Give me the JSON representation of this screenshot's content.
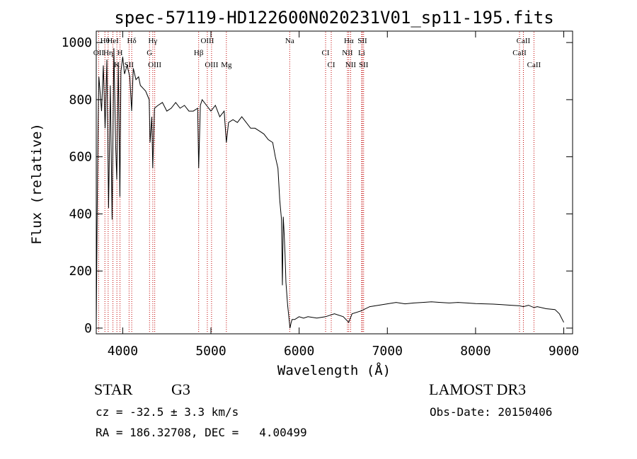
{
  "colors": {
    "spectrum": "#000000",
    "line_marker": "#c00000",
    "axis": "#000000",
    "background": "#ffffff"
  },
  "chart_data": {
    "type": "line",
    "title": "spec-57119-HD122600N020231V01_sp11-195.fits",
    "xlabel": "Wavelength (Å)",
    "ylabel": "Flux (relative)",
    "xlim": [
      3700,
      9100
    ],
    "ylim": [
      -20,
      1040
    ],
    "x_ticks": [
      4000,
      5000,
      6000,
      7000,
      8000,
      9000
    ],
    "y_ticks": [
      0,
      200,
      400,
      600,
      800,
      1000
    ],
    "series": [
      {
        "name": "flux",
        "x": [
          3700,
          3710,
          3720,
          3730,
          3740,
          3760,
          3780,
          3800,
          3820,
          3840,
          3860,
          3880,
          3900,
          3920,
          3933,
          3950,
          3968,
          3980,
          4000,
          4020,
          4050,
          4080,
          4101,
          4120,
          4150,
          4180,
          4200,
          4230,
          4260,
          4300,
          4310,
          4330,
          4340,
          4360,
          4400,
          4450,
          4500,
          4550,
          4600,
          4650,
          4700,
          4750,
          4800,
          4850,
          4861,
          4880,
          4900,
          4950,
          5000,
          5050,
          5100,
          5150,
          5175,
          5200,
          5250,
          5300,
          5350,
          5400,
          5450,
          5500,
          5550,
          5600,
          5650,
          5700,
          5730,
          5760,
          5780,
          5800,
          5810,
          5820,
          5830,
          5840,
          5850,
          5870,
          5890,
          5896,
          5910,
          5920,
          5950,
          6000,
          6050,
          6100,
          6200,
          6300,
          6400,
          6500,
          6562,
          6600,
          6700,
          6800,
          6900,
          7000,
          7100,
          7200,
          7300,
          7400,
          7500,
          7600,
          7700,
          7800,
          7900,
          8000,
          8100,
          8200,
          8300,
          8400,
          8498,
          8542,
          8600,
          8662,
          8700,
          8800,
          8900,
          8950,
          9000
        ],
        "values": [
          0,
          380,
          700,
          880,
          840,
          760,
          920,
          700,
          940,
          420,
          850,
          380,
          980,
          640,
          520,
          930,
          460,
          900,
          950,
          890,
          920,
          880,
          760,
          910,
          870,
          880,
          850,
          840,
          830,
          800,
          650,
          740,
          560,
          770,
          780,
          790,
          760,
          770,
          790,
          770,
          780,
          760,
          760,
          770,
          560,
          780,
          800,
          780,
          760,
          780,
          740,
          760,
          650,
          720,
          730,
          720,
          740,
          720,
          700,
          700,
          690,
          680,
          660,
          650,
          600,
          560,
          450,
          380,
          150,
          390,
          330,
          260,
          160,
          80,
          20,
          0,
          20,
          30,
          30,
          40,
          35,
          40,
          35,
          40,
          50,
          40,
          20,
          50,
          60,
          75,
          80,
          85,
          90,
          85,
          88,
          90,
          92,
          90,
          88,
          90,
          88,
          86,
          85,
          84,
          82,
          80,
          78,
          75,
          80,
          72,
          75,
          68,
          65,
          50,
          20
        ]
      }
    ],
    "line_labels": [
      {
        "label": "Hθ",
        "wave": 3798
      },
      {
        "label": "OII",
        "wave": 3727
      },
      {
        "label": "K",
        "wave": 3934
      },
      {
        "label": "HeI",
        "wave": 3889
      },
      {
        "label": "Hη",
        "wave": 3835
      },
      {
        "label": "SII",
        "wave": 4072
      },
      {
        "label": "Hδ",
        "wave": 4102
      },
      {
        "label": "H",
        "wave": 3969
      },
      {
        "label": "OIII",
        "wave": 4363
      },
      {
        "label": "Hγ",
        "wave": 4341
      },
      {
        "label": "G",
        "wave": 4304
      },
      {
        "label": "OIII",
        "wave": 5007
      },
      {
        "label": "OIII",
        "wave": 4959
      },
      {
        "label": "Hβ",
        "wave": 4861
      },
      {
        "label": "Mg",
        "wave": 5175
      },
      {
        "label": "Na",
        "wave": 5893
      },
      {
        "label": "CI",
        "wave": 6300
      },
      {
        "label": "CI",
        "wave": 6364
      },
      {
        "label": "Hα",
        "wave": 6563
      },
      {
        "label": "NII",
        "wave": 6548
      },
      {
        "label": "NII",
        "wave": 6584
      },
      {
        "label": "SII",
        "wave": 6717
      },
      {
        "label": "Li",
        "wave": 6708
      },
      {
        "label": "SII",
        "wave": 6731
      },
      {
        "label": "CaII",
        "wave": 8542
      },
      {
        "label": "CaII",
        "wave": 8498
      },
      {
        "label": "CaII",
        "wave": 8662
      }
    ]
  },
  "info": {
    "object_class": "STAR",
    "subclass": "G3",
    "survey": "LAMOST DR3",
    "redshift": "cz = -32.5 ± 3.3 km/s",
    "obs_date": "Obs-Date: 20150406",
    "coords": "RA = 186.32708, DEC =   4.00499"
  }
}
